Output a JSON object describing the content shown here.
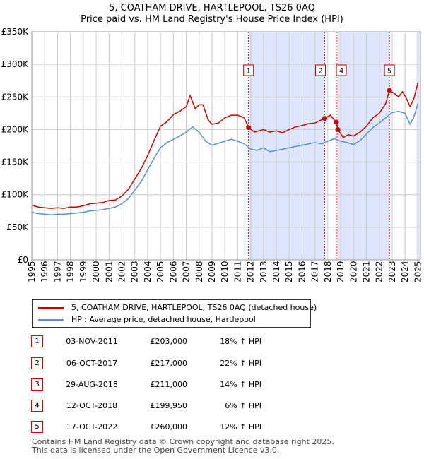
{
  "title_line1": "5, COATHAM DRIVE, HARTLEPOOL, TS26 0AQ",
  "title_line2": "Price paid vs. HM Land Registry's House Price Index (HPI)",
  "colors": {
    "property": "#cc0000",
    "hpi": "#5b8fcf",
    "shade": "#dde6fb",
    "grid": "#cccccc",
    "marker_border": "#cc0000"
  },
  "legend": [
    {
      "label": "5, COATHAM DRIVE, HARTLEPOOL, TS26 0AQ (detached house)",
      "color": "#cc0000"
    },
    {
      "label": "HPI: Average price, detached house, Hartlepool",
      "color": "#5b8fcf"
    }
  ],
  "transactions": [
    {
      "num": "1",
      "date": "03-NOV-2011",
      "price": "£203,000",
      "hpi": "18% ↑ HPI"
    },
    {
      "num": "2",
      "date": "06-OCT-2017",
      "price": "£217,000",
      "hpi": "22% ↑ HPI"
    },
    {
      "num": "3",
      "date": "29-AUG-2018",
      "price": "£211,000",
      "hpi": "14% ↑ HPI"
    },
    {
      "num": "4",
      "date": "12-OCT-2018",
      "price": "£199,950",
      "hpi": "6% ↑ HPI"
    },
    {
      "num": "5",
      "date": "17-OCT-2022",
      "price": "£260,000",
      "hpi": "12% ↑ HPI"
    }
  ],
  "footer_line1": "Contains HM Land Registry data © Crown copyright and database right 2025.",
  "footer_line2": "This data is licensed under the Open Government Licence v3.0.",
  "chart_data": {
    "type": "line",
    "title": "",
    "xlabel": "",
    "ylabel": "",
    "xlim": [
      1995.0,
      2025.2
    ],
    "ylim": [
      0,
      350000
    ],
    "grid": true,
    "x_ticks": [
      {
        "v": 1995,
        "label": "1995"
      },
      {
        "v": 1996,
        "label": "1996"
      },
      {
        "v": 1997,
        "label": "1997"
      },
      {
        "v": 1998,
        "label": "1998"
      },
      {
        "v": 1999,
        "label": "1999"
      },
      {
        "v": 2000,
        "label": "2000"
      },
      {
        "v": 2001,
        "label": "2001"
      },
      {
        "v": 2002,
        "label": "2002"
      },
      {
        "v": 2003,
        "label": "2003"
      },
      {
        "v": 2004,
        "label": "2004"
      },
      {
        "v": 2005,
        "label": "2005"
      },
      {
        "v": 2006,
        "label": "2006"
      },
      {
        "v": 2007,
        "label": "2007"
      },
      {
        "v": 2008,
        "label": "2008"
      },
      {
        "v": 2009,
        "label": "2009"
      },
      {
        "v": 2010,
        "label": "2010"
      },
      {
        "v": 2011,
        "label": "2011"
      },
      {
        "v": 2012,
        "label": "2012"
      },
      {
        "v": 2013,
        "label": "2013"
      },
      {
        "v": 2014,
        "label": "2014"
      },
      {
        "v": 2015,
        "label": "2015"
      },
      {
        "v": 2016,
        "label": "2016"
      },
      {
        "v": 2017,
        "label": "2017"
      },
      {
        "v": 2018,
        "label": "2018"
      },
      {
        "v": 2019,
        "label": "2019"
      },
      {
        "v": 2020,
        "label": "2020"
      },
      {
        "v": 2021,
        "label": "2021"
      },
      {
        "v": 2022,
        "label": "2022"
      },
      {
        "v": 2023,
        "label": "2023"
      },
      {
        "v": 2024,
        "label": "2024"
      },
      {
        "v": 2025,
        "label": "2025"
      }
    ],
    "y_ticks": [
      {
        "v": 0,
        "label": "£0"
      },
      {
        "v": 50000,
        "label": "£50K"
      },
      {
        "v": 100000,
        "label": "£100K"
      },
      {
        "v": 150000,
        "label": "£150K"
      },
      {
        "v": 200000,
        "label": "£200K"
      },
      {
        "v": 250000,
        "label": "£250K"
      },
      {
        "v": 300000,
        "label": "£300K"
      },
      {
        "v": 350000,
        "label": "£350K"
      }
    ],
    "shaded_ranges": [
      [
        2011.84,
        2017.76
      ],
      [
        2018.78,
        2022.79
      ],
      [
        2024.9,
        2025.2
      ]
    ],
    "sales": [
      {
        "label": "1",
        "x": 2011.84,
        "y": 203000
      },
      {
        "label": "2",
        "x": 2017.76,
        "y": 217000
      },
      {
        "label": "3",
        "x": 2018.66,
        "y": 211000
      },
      {
        "label": "4",
        "x": 2018.78,
        "y": 199950
      },
      {
        "label": "5",
        "x": 2022.79,
        "y": 260000
      }
    ],
    "series": [
      {
        "name": "5, COATHAM DRIVE, HARTLEPOOL, TS26 0AQ (detached house)",
        "color": "#cc0000",
        "points": [
          [
            1995.0,
            84000
          ],
          [
            1995.5,
            81000
          ],
          [
            1996.0,
            80000
          ],
          [
            1996.5,
            79000
          ],
          [
            1997.0,
            80000
          ],
          [
            1997.5,
            79000
          ],
          [
            1998.0,
            81000
          ],
          [
            1998.5,
            81000
          ],
          [
            1999.0,
            83000
          ],
          [
            1999.5,
            86000
          ],
          [
            2000.0,
            87000
          ],
          [
            2000.5,
            88000
          ],
          [
            2001.0,
            91000
          ],
          [
            2001.5,
            92000
          ],
          [
            2002.0,
            98000
          ],
          [
            2002.5,
            108000
          ],
          [
            2003.0,
            124000
          ],
          [
            2003.5,
            140000
          ],
          [
            2004.0,
            160000
          ],
          [
            2004.5,
            183000
          ],
          [
            2005.0,
            205000
          ],
          [
            2005.5,
            212000
          ],
          [
            2006.0,
            223000
          ],
          [
            2006.5,
            228000
          ],
          [
            2007.0,
            235000
          ],
          [
            2007.3,
            252000
          ],
          [
            2007.7,
            232000
          ],
          [
            2008.0,
            238000
          ],
          [
            2008.3,
            238000
          ],
          [
            2008.7,
            215000
          ],
          [
            2009.0,
            208000
          ],
          [
            2009.5,
            210000
          ],
          [
            2010.0,
            218000
          ],
          [
            2010.5,
            222000
          ],
          [
            2011.0,
            222000
          ],
          [
            2011.5,
            218000
          ],
          [
            2011.84,
            203000
          ],
          [
            2012.3,
            196000
          ],
          [
            2013.0,
            200000
          ],
          [
            2013.5,
            196000
          ],
          [
            2014.0,
            198000
          ],
          [
            2014.5,
            195000
          ],
          [
            2015.0,
            200000
          ],
          [
            2015.5,
            204000
          ],
          [
            2016.0,
            206000
          ],
          [
            2016.5,
            209000
          ],
          [
            2017.0,
            210000
          ],
          [
            2017.4,
            214000
          ],
          [
            2017.76,
            217000
          ],
          [
            2018.2,
            222000
          ],
          [
            2018.66,
            211000
          ],
          [
            2018.78,
            199950
          ],
          [
            2019.2,
            188000
          ],
          [
            2019.6,
            192000
          ],
          [
            2020.0,
            190000
          ],
          [
            2020.5,
            196000
          ],
          [
            2021.0,
            205000
          ],
          [
            2021.5,
            218000
          ],
          [
            2022.0,
            225000
          ],
          [
            2022.5,
            240000
          ],
          [
            2022.79,
            260000
          ],
          [
            2023.2,
            255000
          ],
          [
            2023.5,
            250000
          ],
          [
            2023.8,
            258000
          ],
          [
            2024.1,
            248000
          ],
          [
            2024.4,
            235000
          ],
          [
            2024.7,
            248000
          ],
          [
            2025.0,
            272000
          ]
        ]
      },
      {
        "name": "HPI: Average price, detached house, Hartlepool",
        "color": "#5b8fcf",
        "points": [
          [
            1995.0,
            73000
          ],
          [
            1995.5,
            71000
          ],
          [
            1996.0,
            70000
          ],
          [
            1996.5,
            69000
          ],
          [
            1997.0,
            70000
          ],
          [
            1997.5,
            70000
          ],
          [
            1998.0,
            71000
          ],
          [
            1998.5,
            72000
          ],
          [
            1999.0,
            73000
          ],
          [
            1999.5,
            75000
          ],
          [
            2000.0,
            76000
          ],
          [
            2000.5,
            77000
          ],
          [
            2001.0,
            79000
          ],
          [
            2001.5,
            81000
          ],
          [
            2002.0,
            86000
          ],
          [
            2002.5,
            94000
          ],
          [
            2003.0,
            107000
          ],
          [
            2003.5,
            120000
          ],
          [
            2004.0,
            138000
          ],
          [
            2004.5,
            156000
          ],
          [
            2005.0,
            172000
          ],
          [
            2005.5,
            180000
          ],
          [
            2006.0,
            185000
          ],
          [
            2006.5,
            190000
          ],
          [
            2007.0,
            196000
          ],
          [
            2007.5,
            204000
          ],
          [
            2008.0,
            196000
          ],
          [
            2008.5,
            182000
          ],
          [
            2009.0,
            176000
          ],
          [
            2009.5,
            179000
          ],
          [
            2010.0,
            182000
          ],
          [
            2010.5,
            185000
          ],
          [
            2011.0,
            182000
          ],
          [
            2011.5,
            178000
          ],
          [
            2012.0,
            170000
          ],
          [
            2012.5,
            168000
          ],
          [
            2013.0,
            172000
          ],
          [
            2013.5,
            166000
          ],
          [
            2014.0,
            168000
          ],
          [
            2014.5,
            170000
          ],
          [
            2015.0,
            172000
          ],
          [
            2015.5,
            174000
          ],
          [
            2016.0,
            176000
          ],
          [
            2016.5,
            178000
          ],
          [
            2017.0,
            180000
          ],
          [
            2017.5,
            178000
          ],
          [
            2018.0,
            182000
          ],
          [
            2018.5,
            186000
          ],
          [
            2019.0,
            182000
          ],
          [
            2019.5,
            180000
          ],
          [
            2020.0,
            177000
          ],
          [
            2020.5,
            183000
          ],
          [
            2021.0,
            193000
          ],
          [
            2021.5,
            203000
          ],
          [
            2022.0,
            210000
          ],
          [
            2022.5,
            218000
          ],
          [
            2023.0,
            226000
          ],
          [
            2023.5,
            228000
          ],
          [
            2024.0,
            225000
          ],
          [
            2024.4,
            208000
          ],
          [
            2024.7,
            220000
          ],
          [
            2025.0,
            240000
          ]
        ]
      }
    ]
  }
}
